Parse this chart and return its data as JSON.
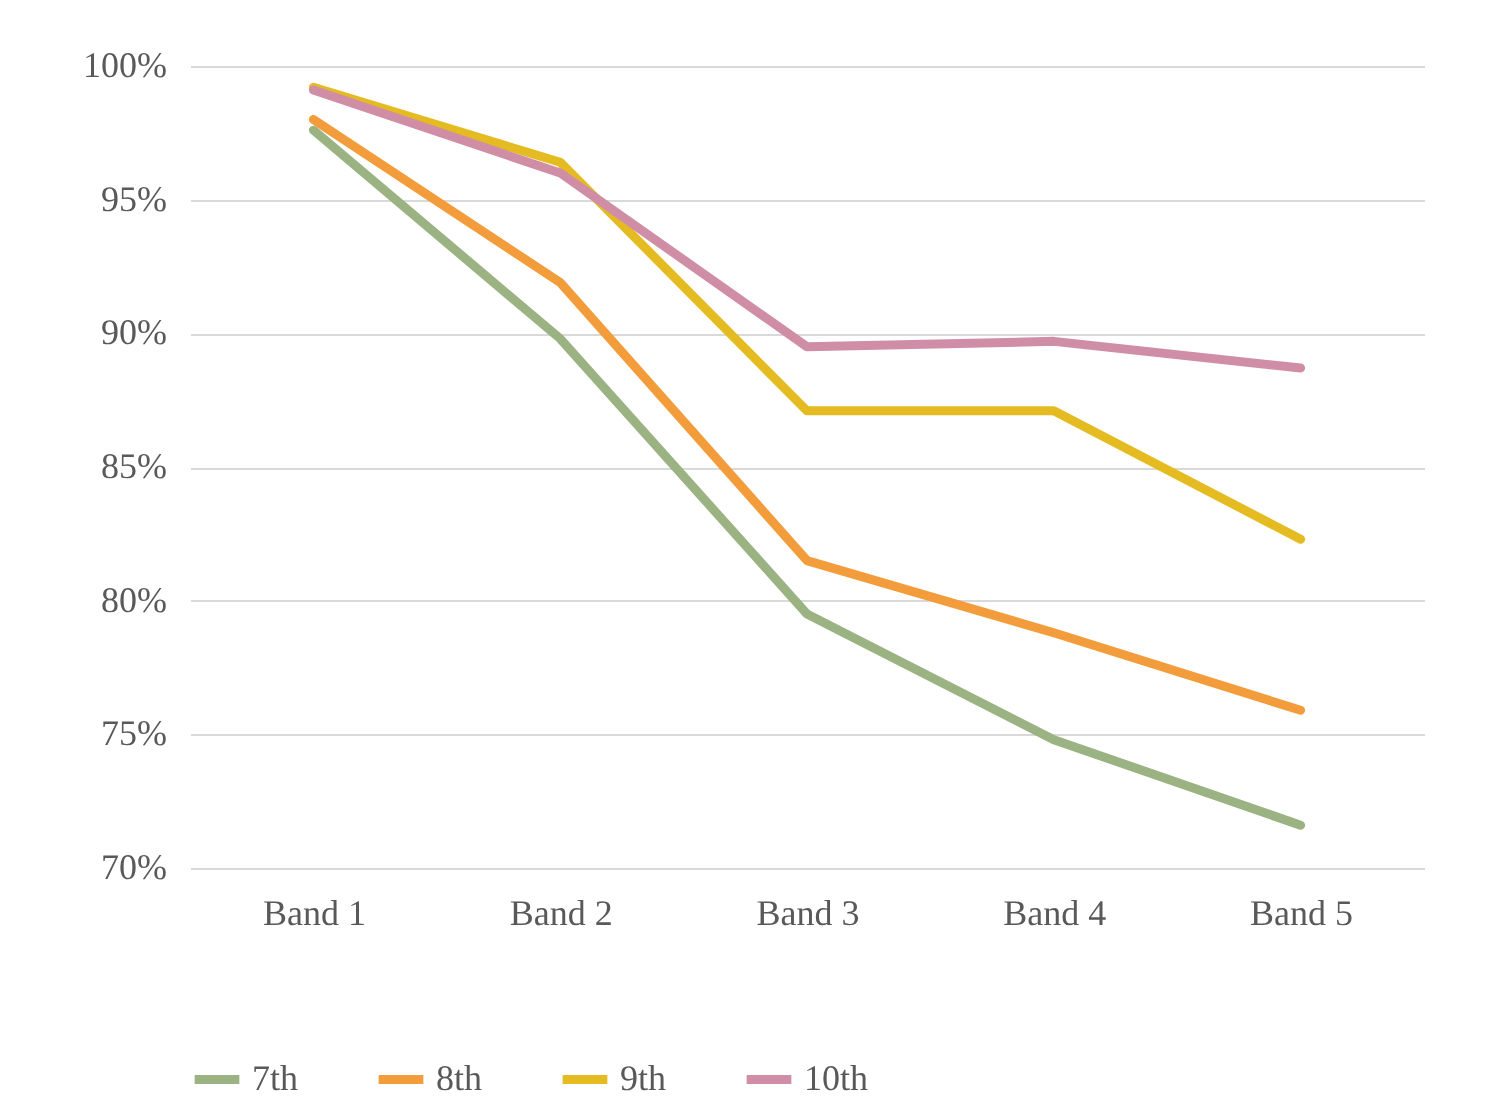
{
  "chart_data": {
    "type": "line",
    "categories": [
      "Band 1",
      "Band 2",
      "Band 3",
      "Band 4",
      "Band 5"
    ],
    "series": [
      {
        "name": "7th",
        "color": "#9bb382",
        "values": [
          97.6,
          89.8,
          79.5,
          74.8,
          71.6
        ]
      },
      {
        "name": "8th",
        "color": "#f39c3c",
        "values": [
          98.0,
          91.9,
          81.5,
          78.8,
          75.9
        ]
      },
      {
        "name": "9th",
        "color": "#e5bb22",
        "values": [
          99.2,
          96.4,
          87.1,
          87.1,
          82.3
        ]
      },
      {
        "name": "10th",
        "color": "#d08ea6",
        "values": [
          99.1,
          96.0,
          89.5,
          89.7,
          88.7
        ]
      }
    ],
    "ylim": [
      70,
      100
    ],
    "yticks": [
      {
        "value": 70,
        "label": "70%"
      },
      {
        "value": 75,
        "label": "75%"
      },
      {
        "value": 80,
        "label": "80%"
      },
      {
        "value": 85,
        "label": "85%"
      },
      {
        "value": 90,
        "label": "90%"
      },
      {
        "value": 95,
        "label": "95%"
      },
      {
        "value": 100,
        "label": "100%"
      }
    ],
    "grid": "y",
    "legend": "bottom",
    "marker": "none",
    "line_style": "solid"
  }
}
